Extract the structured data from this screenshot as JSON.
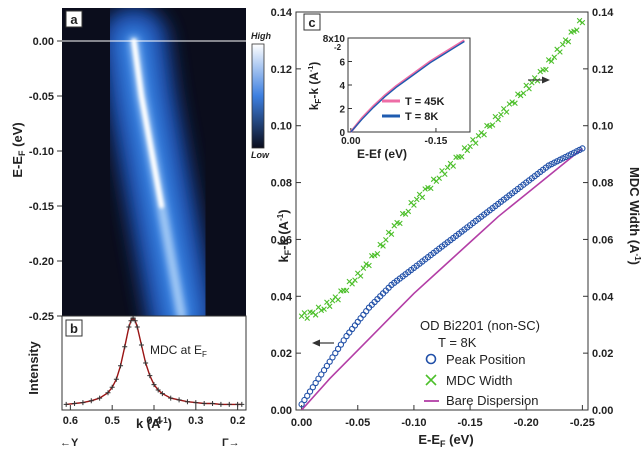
{
  "figure": {
    "panel_a_tag": "a",
    "panel_b_tag": "b",
    "panel_c_tag": "c",
    "colorbar_high": "High",
    "colorbar_low": "Low",
    "panel_b_annotation": "MDC at E",
    "panel_b_annotation_sub": "F",
    "panel_b_left_arrow_label": "←Y",
    "panel_b_right_arrow_label": "Γ→",
    "panel_c_sample_line1": "OD Bi2201 (non-SC)",
    "panel_c_sample_line2": "T = 8K"
  },
  "colors": {
    "cmap_dark": "#0b0d1c",
    "cmap_mid": "#2563c8",
    "cmap_light": "#ffffff",
    "mdc_line": "#9a1414",
    "mdc_marker": "#333333",
    "peak_position": "#2150a8",
    "mdc_width": "#4cbf2a",
    "bare_dispersion": "#b33ea6",
    "inset_45k": "#ee6da6",
    "inset_8k": "#1e5bb0"
  },
  "chart_data": [
    {
      "id": "a",
      "type": "heatmap",
      "ylabel": "E-E",
      "ylabel_sub": "F",
      "ylabel_unit": " (eV)",
      "ylim": [
        -0.25,
        0.03
      ],
      "yticks": [
        0.0,
        -0.05,
        -0.1,
        -0.15,
        -0.2,
        -0.25
      ],
      "ytick_labels": [
        "0.00",
        "-0.05",
        "-0.10",
        "-0.15",
        "-0.20",
        "-0.25"
      ],
      "xlim": [
        0.62,
        0.18
      ],
      "fermi_level": 0.0,
      "dispersion": {
        "energy": [
          0.0,
          -0.05,
          -0.1,
          -0.15,
          -0.2,
          -0.25
        ],
        "k": [
          0.448,
          0.43,
          0.406,
          0.382,
          0.358,
          0.334
        ]
      }
    },
    {
      "id": "b",
      "type": "line",
      "ylabel": "Intensity",
      "xlabel": "k (A",
      "xlabel_sup": "-1",
      "xlabel_close": ")",
      "xlim": [
        0.62,
        0.18
      ],
      "xticks": [
        0.6,
        0.5,
        0.4,
        0.3,
        0.2
      ],
      "xtick_labels": [
        "0.6",
        "0.5",
        "0.4",
        "0.3",
        "0.2"
      ],
      "series": [
        {
          "k": [
            0.61,
            0.59,
            0.57,
            0.55,
            0.53,
            0.51,
            0.5,
            0.49,
            0.48,
            0.47,
            0.46,
            0.455,
            0.45,
            0.445,
            0.44,
            0.43,
            0.42,
            0.41,
            0.4,
            0.39,
            0.38,
            0.36,
            0.34,
            0.32,
            0.3,
            0.28,
            0.26,
            0.24,
            0.22,
            0.2,
            0.19
          ],
          "intensity": [
            0.04,
            0.05,
            0.06,
            0.08,
            0.11,
            0.17,
            0.23,
            0.32,
            0.47,
            0.68,
            0.9,
            0.97,
            1.0,
            0.97,
            0.9,
            0.7,
            0.5,
            0.36,
            0.26,
            0.2,
            0.16,
            0.11,
            0.09,
            0.07,
            0.06,
            0.05,
            0.05,
            0.04,
            0.04,
            0.04,
            0.04
          ]
        }
      ]
    },
    {
      "id": "c",
      "type": "scatter",
      "xlabel": "E-E",
      "xlabel_sub": "F",
      "xlabel_unit": " (eV)",
      "ylabel_left": "k",
      "ylabel_left_sub": "F",
      "ylabel_left_rest": "-k (A",
      "ylabel_left_sup": "-1",
      "ylabel_left_close": ")",
      "ylabel_right": "MDC Width (A",
      "ylabel_right_sup": "-1",
      "ylabel_right_close": ")",
      "xlim": [
        0.005,
        -0.255
      ],
      "ylim": [
        0.0,
        0.14
      ],
      "xticks": [
        0.0,
        -0.05,
        -0.1,
        -0.15,
        -0.2,
        -0.25
      ],
      "xtick_labels": [
        "0.00",
        "-0.05",
        "-0.10",
        "-0.15",
        "-0.20",
        "-0.25"
      ],
      "yticks": [
        0.0,
        0.02,
        0.04,
        0.06,
        0.08,
        0.1,
        0.12,
        0.14
      ],
      "ytick_labels": [
        "0.00",
        "0.02",
        "0.04",
        "0.06",
        "0.08",
        "0.10",
        "0.12",
        "0.14"
      ],
      "series": [
        {
          "name": "Peak Position",
          "x": [
            0.0,
            -0.01,
            -0.02,
            -0.03,
            -0.04,
            -0.05,
            -0.06,
            -0.07,
            -0.08,
            -0.09,
            -0.1,
            -0.11,
            -0.12,
            -0.13,
            -0.14,
            -0.15,
            -0.16,
            -0.17,
            -0.18,
            -0.19,
            -0.2,
            -0.21,
            -0.22,
            -0.23,
            -0.24,
            -0.25
          ],
          "y": [
            0.002,
            0.008,
            0.014,
            0.02,
            0.026,
            0.031,
            0.036,
            0.04,
            0.044,
            0.047,
            0.05,
            0.053,
            0.056,
            0.059,
            0.062,
            0.065,
            0.068,
            0.071,
            0.074,
            0.077,
            0.08,
            0.083,
            0.086,
            0.088,
            0.09,
            0.092
          ]
        },
        {
          "name": "MDC Width",
          "x": [
            0.0,
            -0.01,
            -0.02,
            -0.03,
            -0.04,
            -0.05,
            -0.06,
            -0.07,
            -0.08,
            -0.09,
            -0.1,
            -0.11,
            -0.12,
            -0.13,
            -0.14,
            -0.15,
            -0.16,
            -0.17,
            -0.18,
            -0.19,
            -0.2,
            -0.21,
            -0.22,
            -0.23,
            -0.24,
            -0.25
          ],
          "y": [
            0.033,
            0.034,
            0.036,
            0.039,
            0.043,
            0.047,
            0.052,
            0.057,
            0.063,
            0.068,
            0.073,
            0.077,
            0.081,
            0.085,
            0.089,
            0.093,
            0.097,
            0.101,
            0.105,
            0.109,
            0.113,
            0.117,
            0.122,
            0.127,
            0.132,
            0.137
          ]
        },
        {
          "name": "Bare Dispersion",
          "x": [
            0.0,
            -0.025,
            -0.05,
            -0.075,
            -0.1,
            -0.125,
            -0.15,
            -0.175,
            -0.2,
            -0.225,
            -0.25
          ],
          "y": [
            0.0,
            0.011,
            0.021,
            0.031,
            0.041,
            0.05,
            0.059,
            0.068,
            0.076,
            0.084,
            0.092
          ]
        }
      ],
      "arrows": [
        "left",
        "right"
      ]
    },
    {
      "id": "c-inset",
      "type": "line",
      "xlabel": "E-Ef (eV)",
      "ylabel": "k",
      "ylabel_sub": "F",
      "ylabel_rest": "-k (A",
      "ylabel_sup": "-1",
      "ylabel_close": ")",
      "xlim": [
        0.005,
        -0.21
      ],
      "ylim": [
        0.0,
        0.08
      ],
      "xticks": [
        0.0,
        -0.15
      ],
      "xtick_labels": [
        "0.00",
        "-0.15"
      ],
      "yticks": [
        0.0,
        0.02,
        0.04,
        0.06,
        0.08
      ],
      "ytick_labels": [
        "0",
        "2",
        "4",
        "6",
        "8x10"
      ],
      "ytick_exponent": "-2",
      "series": [
        {
          "name": "T = 45K",
          "x": [
            0.0,
            -0.02,
            -0.04,
            -0.06,
            -0.08,
            -0.1,
            -0.12,
            -0.14,
            -0.16,
            -0.18,
            -0.2
          ],
          "y": [
            0.0,
            0.012,
            0.022,
            0.031,
            0.039,
            0.046,
            0.053,
            0.06,
            0.066,
            0.072,
            0.078
          ]
        },
        {
          "name": "T = 8K",
          "x": [
            0.0,
            -0.02,
            -0.04,
            -0.06,
            -0.08,
            -0.1,
            -0.12,
            -0.14,
            -0.16,
            -0.18,
            -0.2
          ],
          "y": [
            0.0,
            0.011,
            0.021,
            0.03,
            0.038,
            0.045,
            0.052,
            0.059,
            0.065,
            0.071,
            0.077
          ]
        }
      ]
    }
  ]
}
